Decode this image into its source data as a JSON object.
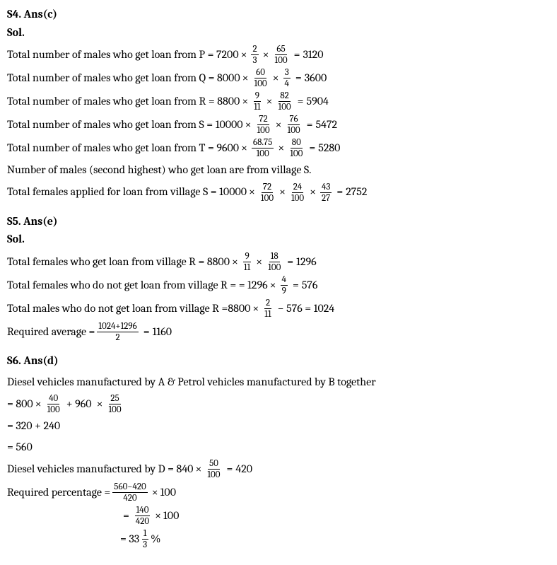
{
  "s4": {
    "heading": "S4. Ans(c)",
    "sol": "Sol.",
    "l1_pre": "Total number of males who get loan from P = 7200",
    "l1_f1n": "2",
    "l1_f1d": "3",
    "l1_f2n": "65",
    "l1_f2d": "100",
    "l1_res": "3120",
    "l2_pre": "Total number of males who get loan from Q = 8000",
    "l2_f1n": "60",
    "l2_f1d": "100",
    "l2_f2n": "3",
    "l2_f2d": "4",
    "l2_res": "3600",
    "l3_pre": "Total number of males who get loan from R = 8800",
    "l3_f1n": "9",
    "l3_f1d": "11",
    "l3_f2n": "82",
    "l3_f2d": "100",
    "l3_res": "5904",
    "l4_pre": "Total number of males who get loan from S = 10000",
    "l4_f1n": "72",
    "l4_f1d": "100",
    "l4_f2n": "76",
    "l4_f2d": "100",
    "l4_res": "5472",
    "l5_pre": "Total number of males who get loan from T = 9600",
    "l5_f1n": "68.75",
    "l5_f1d": "100",
    "l5_f2n": "80",
    "l5_f2d": "100",
    "l5_res": "5280",
    "l6": "Number of males (second highest) who get loan are from village S.",
    "l7_pre": "Total females applied for loan from village S = 10000",
    "l7_f1n": "72",
    "l7_f1d": "100",
    "l7_f2n": "24",
    "l7_f2d": "100",
    "l7_f3n": "43",
    "l7_f3d": "27",
    "l7_res": "2752"
  },
  "s5": {
    "heading": "S5. Ans(e)",
    "sol": "Sol.",
    "l1_pre": "Total females who get loan from village R = 8800",
    "l1_f1n": "9",
    "l1_f1d": "11",
    "l1_f2n": "18",
    "l1_f2d": "100",
    "l1_res": "1296",
    "l2_pre": "Total females who do not get loan from village R = =  1296 ",
    "l2_f1n": "4",
    "l2_f1d": "9",
    "l2_res": "576",
    "l3_pre": "Total males who do not get loan from village R =8800",
    "l3_f1n": "2",
    "l3_f1d": "11",
    "l3_minus": "− 576 = 1024",
    "l4_pre": "Required average =",
    "l4_f1n": "1024+1296",
    "l4_f1d": "2",
    "l4_res": "1160"
  },
  "s6": {
    "heading": "S6. Ans(d)",
    "l1": "Diesel vehicles manufactured by A & Petrol vehicles manufactured by B together",
    "l2_pre": "= 800",
    "l2_f1n": "40",
    "l2_f1d": "100",
    "l2_mid": "+ 960 ",
    "l2_f2n": "25",
    "l2_f2d": "100",
    "l3": "= 320 + 240",
    "l4": "= 560",
    "l5_pre": "Diesel vehicles manufactured by D = 840",
    "l5_f1n": "50",
    "l5_f1d": "100",
    "l5_res": "420",
    "l6_pre": "Required percentage =",
    "l6_f1n": "560−420",
    "l6_f1d": "420",
    "l6_post": "100",
    "l7_f1n": "140",
    "l7_f1d": "420",
    "l7_post": "100",
    "l8_whole": "= 33",
    "l8_fn": "1",
    "l8_fd": "3",
    "l8_pct": "%"
  },
  "sym": {
    "times": "×",
    "eq": "="
  }
}
